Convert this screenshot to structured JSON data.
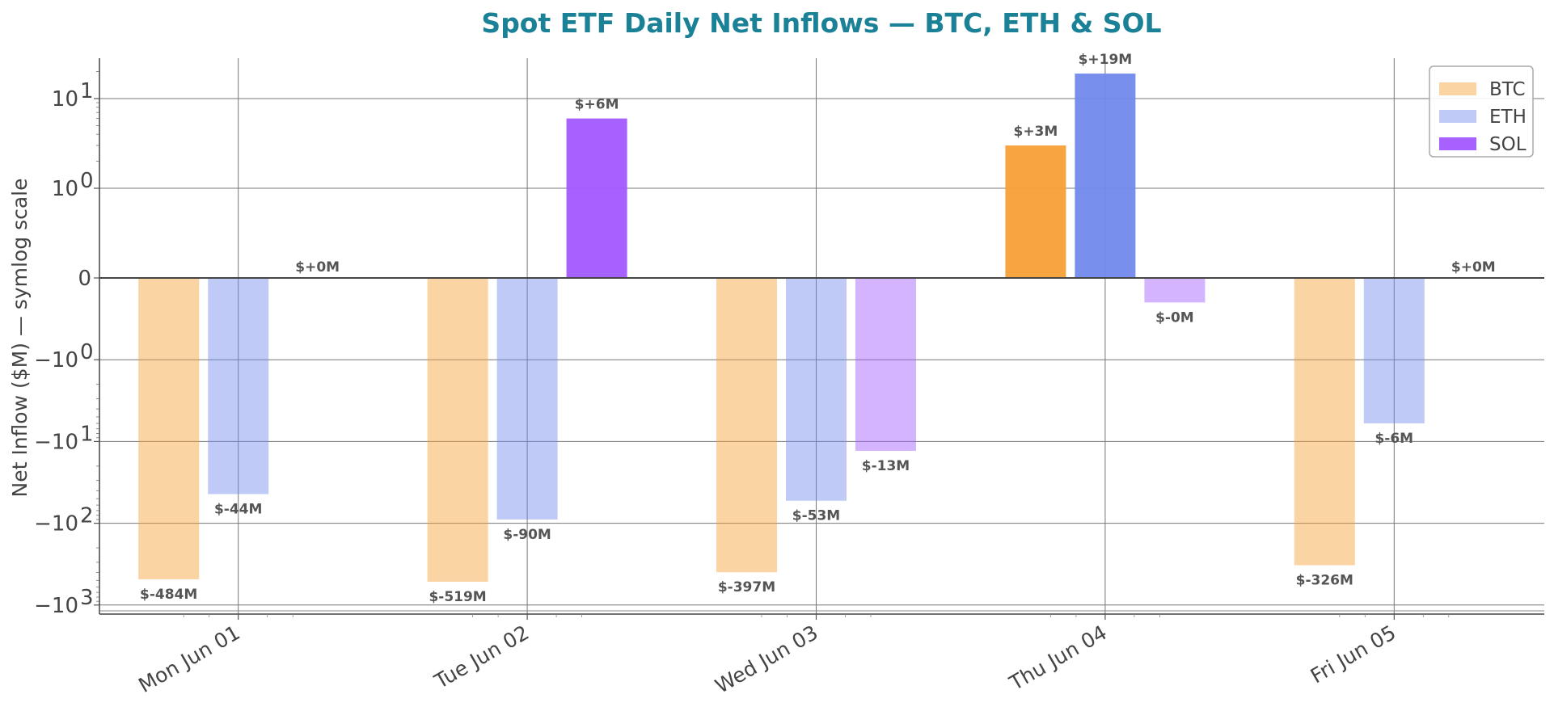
{
  "chart_data": {
    "type": "bar",
    "title": "Spot ETF Daily Net Inflows — BTC, ETH & SOL",
    "ylabel": "Net Inflow ($M) — symlog scale",
    "xlabel": "",
    "y_scale": "symlog",
    "ylim": [
      -1000,
      40
    ],
    "y_ticks": [
      {
        "value": 10,
        "base": "10",
        "exp": "1"
      },
      {
        "value": 1,
        "base": "10",
        "exp": "0"
      },
      {
        "value": 0,
        "base": "0",
        "exp": ""
      },
      {
        "value": -1,
        "base": "−10",
        "exp": "0"
      },
      {
        "value": -10,
        "base": "−10",
        "exp": "1"
      },
      {
        "value": -100,
        "base": "−10",
        "exp": "2"
      },
      {
        "value": -1000,
        "base": "−10",
        "exp": "3"
      }
    ],
    "categories": [
      "Mon Jun 01",
      "Tue Jun 02",
      "Wed Jun 03",
      "Thu Jun 04",
      "Fri Jun 05"
    ],
    "series": [
      {
        "name": "BTC",
        "color": "#f7a036",
        "values": [
          -484,
          -519,
          -397,
          3,
          -326
        ],
        "labels": [
          "$-484M",
          "$-519M",
          "$-397M",
          "$+3M",
          "$-326M"
        ]
      },
      {
        "name": "ETH",
        "color": "#7189ed",
        "values": [
          -44,
          -90,
          -53,
          19,
          -6
        ],
        "labels": [
          "$-44M",
          "$-90M",
          "$-53M",
          "$+19M",
          "$-6M"
        ]
      },
      {
        "name": "SOL",
        "color": "#a259ff",
        "values": [
          0,
          6,
          -13,
          -0.3,
          0
        ],
        "labels": [
          "$+0M",
          "$+6M",
          "$-13M",
          "$-0M",
          "$+0M"
        ]
      }
    ],
    "highlight": "positive bars drawn opaque, negative bars faded",
    "grid": true,
    "legend_position": "top-right",
    "title_color": "#1a8197"
  }
}
